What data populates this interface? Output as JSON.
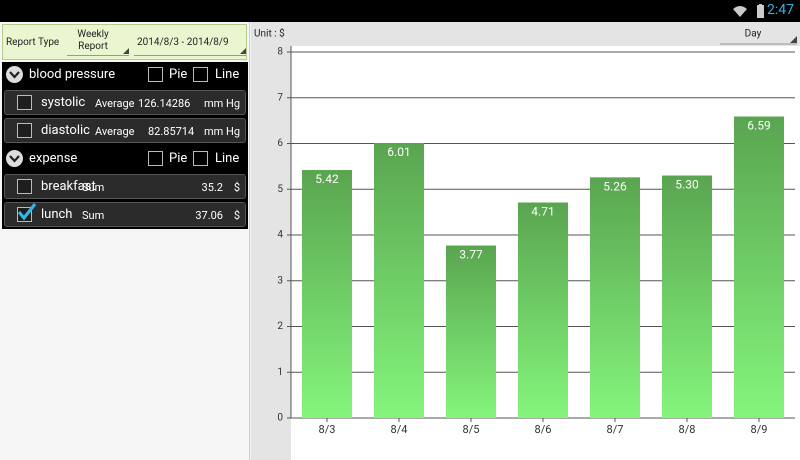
{
  "status_bar": {
    "time": "2:47"
  },
  "sidebar": {
    "report_type_label": "Report Type",
    "report_type": "Weekly Report",
    "date_range": "2014/8/3 - 2014/8/9",
    "groups": [
      {
        "name": "blood pressure",
        "pie": "Pie",
        "line": "Line",
        "items": [
          {
            "name": "systolic",
            "stat": "Average",
            "value": 126.14286,
            "unit": "mm Hg",
            "checked": false
          },
          {
            "name": "diastolic",
            "stat": "Average",
            "value": 82.85714,
            "unit": "mm Hg",
            "checked": false
          }
        ]
      },
      {
        "name": "expense",
        "pie": "Pie",
        "line": "Line",
        "items": [
          {
            "name": "breakfast",
            "stat": "Sum",
            "value": 35.2,
            "unit": "$",
            "checked": false
          },
          {
            "name": "lunch",
            "stat": "Sum",
            "value": 37.06,
            "unit": "$",
            "checked": true
          }
        ]
      }
    ]
  },
  "chart_data": {
    "type": "bar",
    "unit_label": "Unit : $",
    "period": "Day",
    "categories": [
      "8/3",
      "8/4",
      "8/5",
      "8/6",
      "8/7",
      "8/8",
      "8/9"
    ],
    "values": [
      5.42,
      6.01,
      3.77,
      4.71,
      5.26,
      5.3,
      6.59
    ],
    "value_labels": [
      "5.42",
      "6.01",
      "3.77",
      "4.71",
      "5.26",
      "5.30",
      "6.59"
    ],
    "color": "#5aa550",
    "color_bottom": "#84f57c",
    "ylim": [
      0,
      8
    ],
    "yticks": [
      0,
      1,
      2,
      3,
      4,
      5,
      6,
      7,
      8
    ],
    "grid": true
  }
}
